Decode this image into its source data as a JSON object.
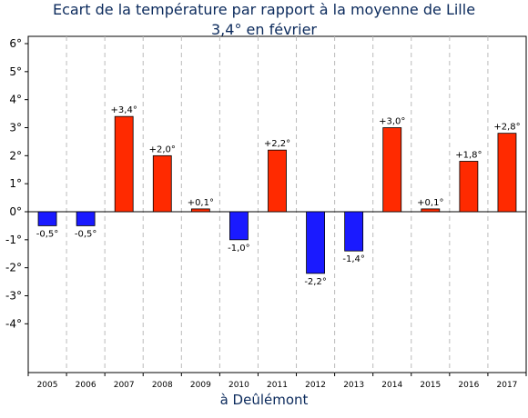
{
  "chart_data": {
    "type": "bar",
    "title": "Ecart de la température par rapport à la moyenne de Lille",
    "subtitle": "3,4° en février",
    "xlabel": "à Deûlémont",
    "ylabel": "",
    "categories": [
      "2005",
      "2006",
      "2007",
      "2008",
      "2009",
      "2010",
      "2011",
      "2012",
      "2013",
      "2014",
      "2015",
      "2016",
      "2017"
    ],
    "values": [
      -0.5,
      -0.5,
      3.4,
      2.0,
      0.1,
      -1.0,
      2.2,
      -2.2,
      -1.4,
      3.0,
      0.1,
      1.8,
      2.8
    ],
    "data_labels": [
      "-0,5°",
      "-0,5°",
      "+3,4°",
      "+2,0°",
      "+0,1°",
      "-1,0°",
      "+2,2°",
      "-2,2°",
      "-1,4°",
      "+3,0°",
      "+0,1°",
      "+1,8°",
      "+2,8°"
    ],
    "y_ticks": [
      6,
      5,
      4,
      3,
      2,
      1,
      0,
      -1,
      -2,
      -3,
      -4
    ],
    "y_tick_labels": [
      "6°",
      "5°",
      "4°",
      "3°",
      "2°",
      "1°",
      "0°",
      "-1°",
      "-2°",
      "-3°",
      "-4°"
    ],
    "ylim": [
      -6,
      6
    ],
    "colors": {
      "positive": "#ff2a00",
      "negative": "#1a1aff",
      "grid": "#bbbbbb",
      "title": "#0b2a5c"
    },
    "grid": true,
    "legend": "none"
  }
}
